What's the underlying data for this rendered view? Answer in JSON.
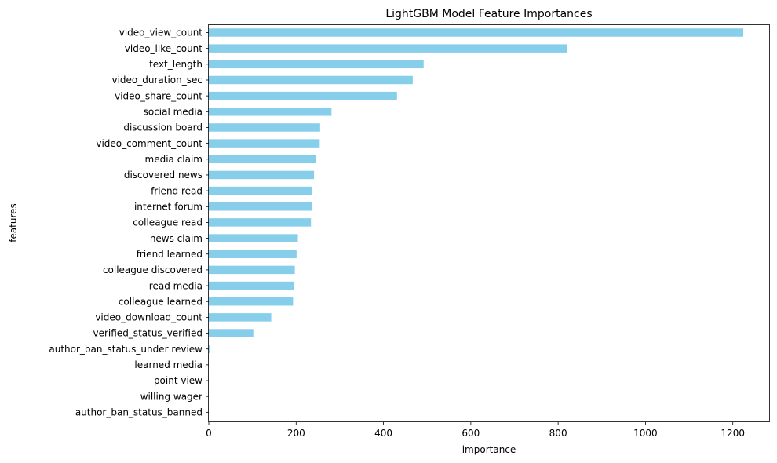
{
  "chart_data": {
    "type": "bar",
    "orientation": "horizontal",
    "title": "LightGBM Model Feature Importances",
    "xlabel": "importance",
    "ylabel": "features",
    "xlim": [
      0,
      1285
    ],
    "xticks": [
      0,
      200,
      400,
      600,
      800,
      1000,
      1200
    ],
    "grid": false,
    "legend": "none",
    "bar_color": "#87CEEB",
    "categories": [
      "video_view_count",
      "video_like_count",
      "text_length",
      "video_duration_sec",
      "video_share_count",
      "social media",
      "discussion board",
      "video_comment_count",
      "media claim",
      "discovered news",
      "friend read",
      "internet forum",
      "colleague read",
      "news claim",
      "friend learned",
      "colleague discovered",
      "read media",
      "colleague learned",
      "video_download_count",
      "verified_status_verified",
      "author_ban_status_under review",
      "learned media",
      "point view",
      "willing wager",
      "author_ban_status_banned"
    ],
    "values": [
      1224,
      820,
      492,
      467,
      431,
      281,
      255,
      254,
      245,
      241,
      237,
      237,
      234,
      204,
      201,
      197,
      195,
      193,
      143,
      102,
      3,
      0,
      0,
      0,
      0
    ]
  }
}
